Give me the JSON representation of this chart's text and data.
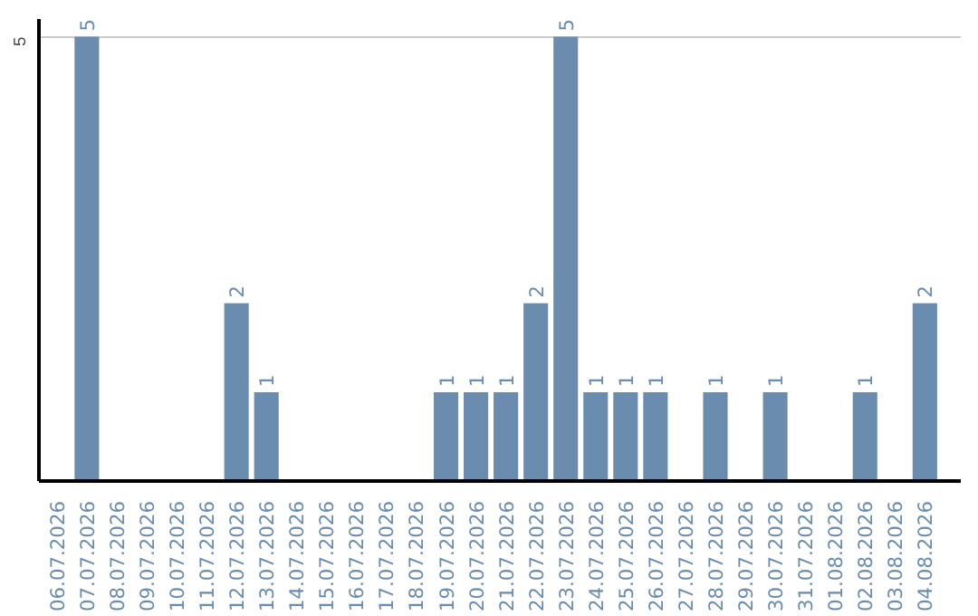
{
  "chart_data": {
    "type": "bar",
    "categories": [
      "06.07.2026",
      "07.07.2026",
      "08.07.2026",
      "09.07.2026",
      "10.07.2026",
      "11.07.2026",
      "12.07.2026",
      "13.07.2026",
      "14.07.2026",
      "15.07.2026",
      "16.07.2026",
      "17.07.2026",
      "18.07.2026",
      "19.07.2026",
      "20.07.2026",
      "21.07.2026",
      "22.07.2026",
      "23.07.2026",
      "24.07.2026",
      "25.07.2026",
      "26.07.2026",
      "27.07.2026",
      "28.07.2026",
      "29.07.2026",
      "30.07.2026",
      "31.07.2026",
      "01.08.2026",
      "02.08.2026",
      "03.08.2026",
      "04.08.2026"
    ],
    "values": [
      0,
      5,
      0,
      0,
      0,
      0,
      2,
      1,
      0,
      0,
      0,
      0,
      0,
      1,
      1,
      1,
      2,
      5,
      1,
      1,
      1,
      0,
      1,
      0,
      1,
      0,
      0,
      1,
      0,
      2
    ],
    "value_labels": [
      null,
      "5",
      null,
      null,
      null,
      null,
      "2",
      "1",
      null,
      null,
      null,
      null,
      null,
      "1",
      "1",
      "1",
      "2",
      "5",
      "1",
      "1",
      "1",
      null,
      "1",
      null,
      "1",
      null,
      null,
      "1",
      null,
      "2"
    ],
    "color": "#6a8caf",
    "ylim": [
      0,
      5.2
    ],
    "yticks": [
      5
    ],
    "grid": "y"
  }
}
